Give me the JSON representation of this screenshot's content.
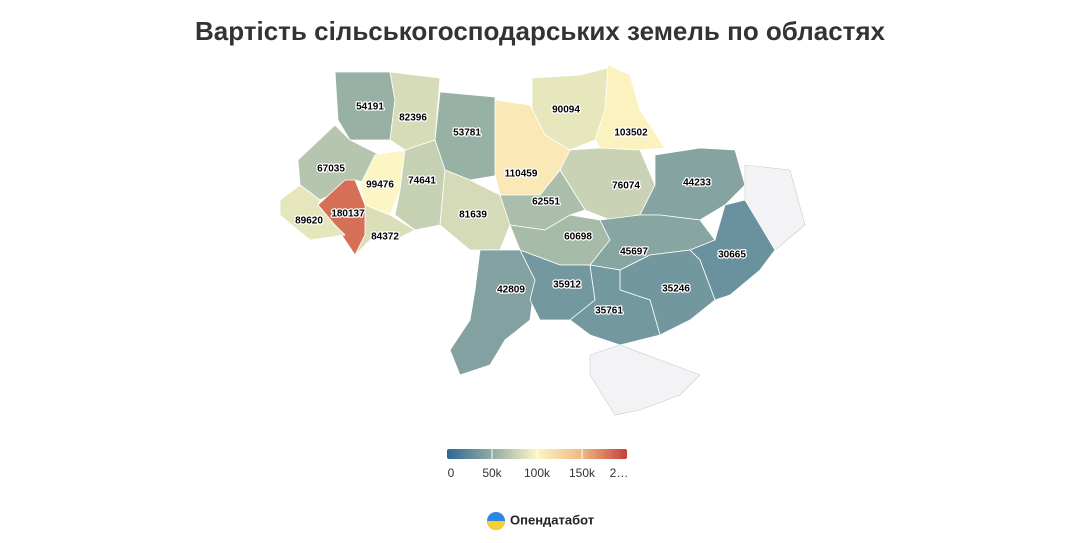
{
  "title": "Вартість сільськогосподарських земель по областях",
  "regions": [
    54191,
    82396,
    53781,
    90094,
    103502,
    67035,
    99476,
    74641,
    110459,
    76074,
    44233,
    180137,
    89620,
    84372,
    81639,
    62551,
    60698,
    45697,
    30665,
    42809,
    35912,
    35246,
    35761
  ],
  "color_scale": {
    "range": [
      0,
      200000
    ],
    "colors": [
      "#2d6897",
      "#90aba2",
      "#fdf6c4",
      "#eeb882",
      "#c4403a"
    ],
    "ticks": [
      0,
      {
        "value": 50000,
        "label": "50k"
      },
      {
        "value": 100000,
        "label": "100k"
      },
      {
        "value": 150000,
        "label": "150k"
      },
      {
        "value": 200000,
        "label": "2…"
      }
    ]
  },
  "brand": "Опендатабот"
}
